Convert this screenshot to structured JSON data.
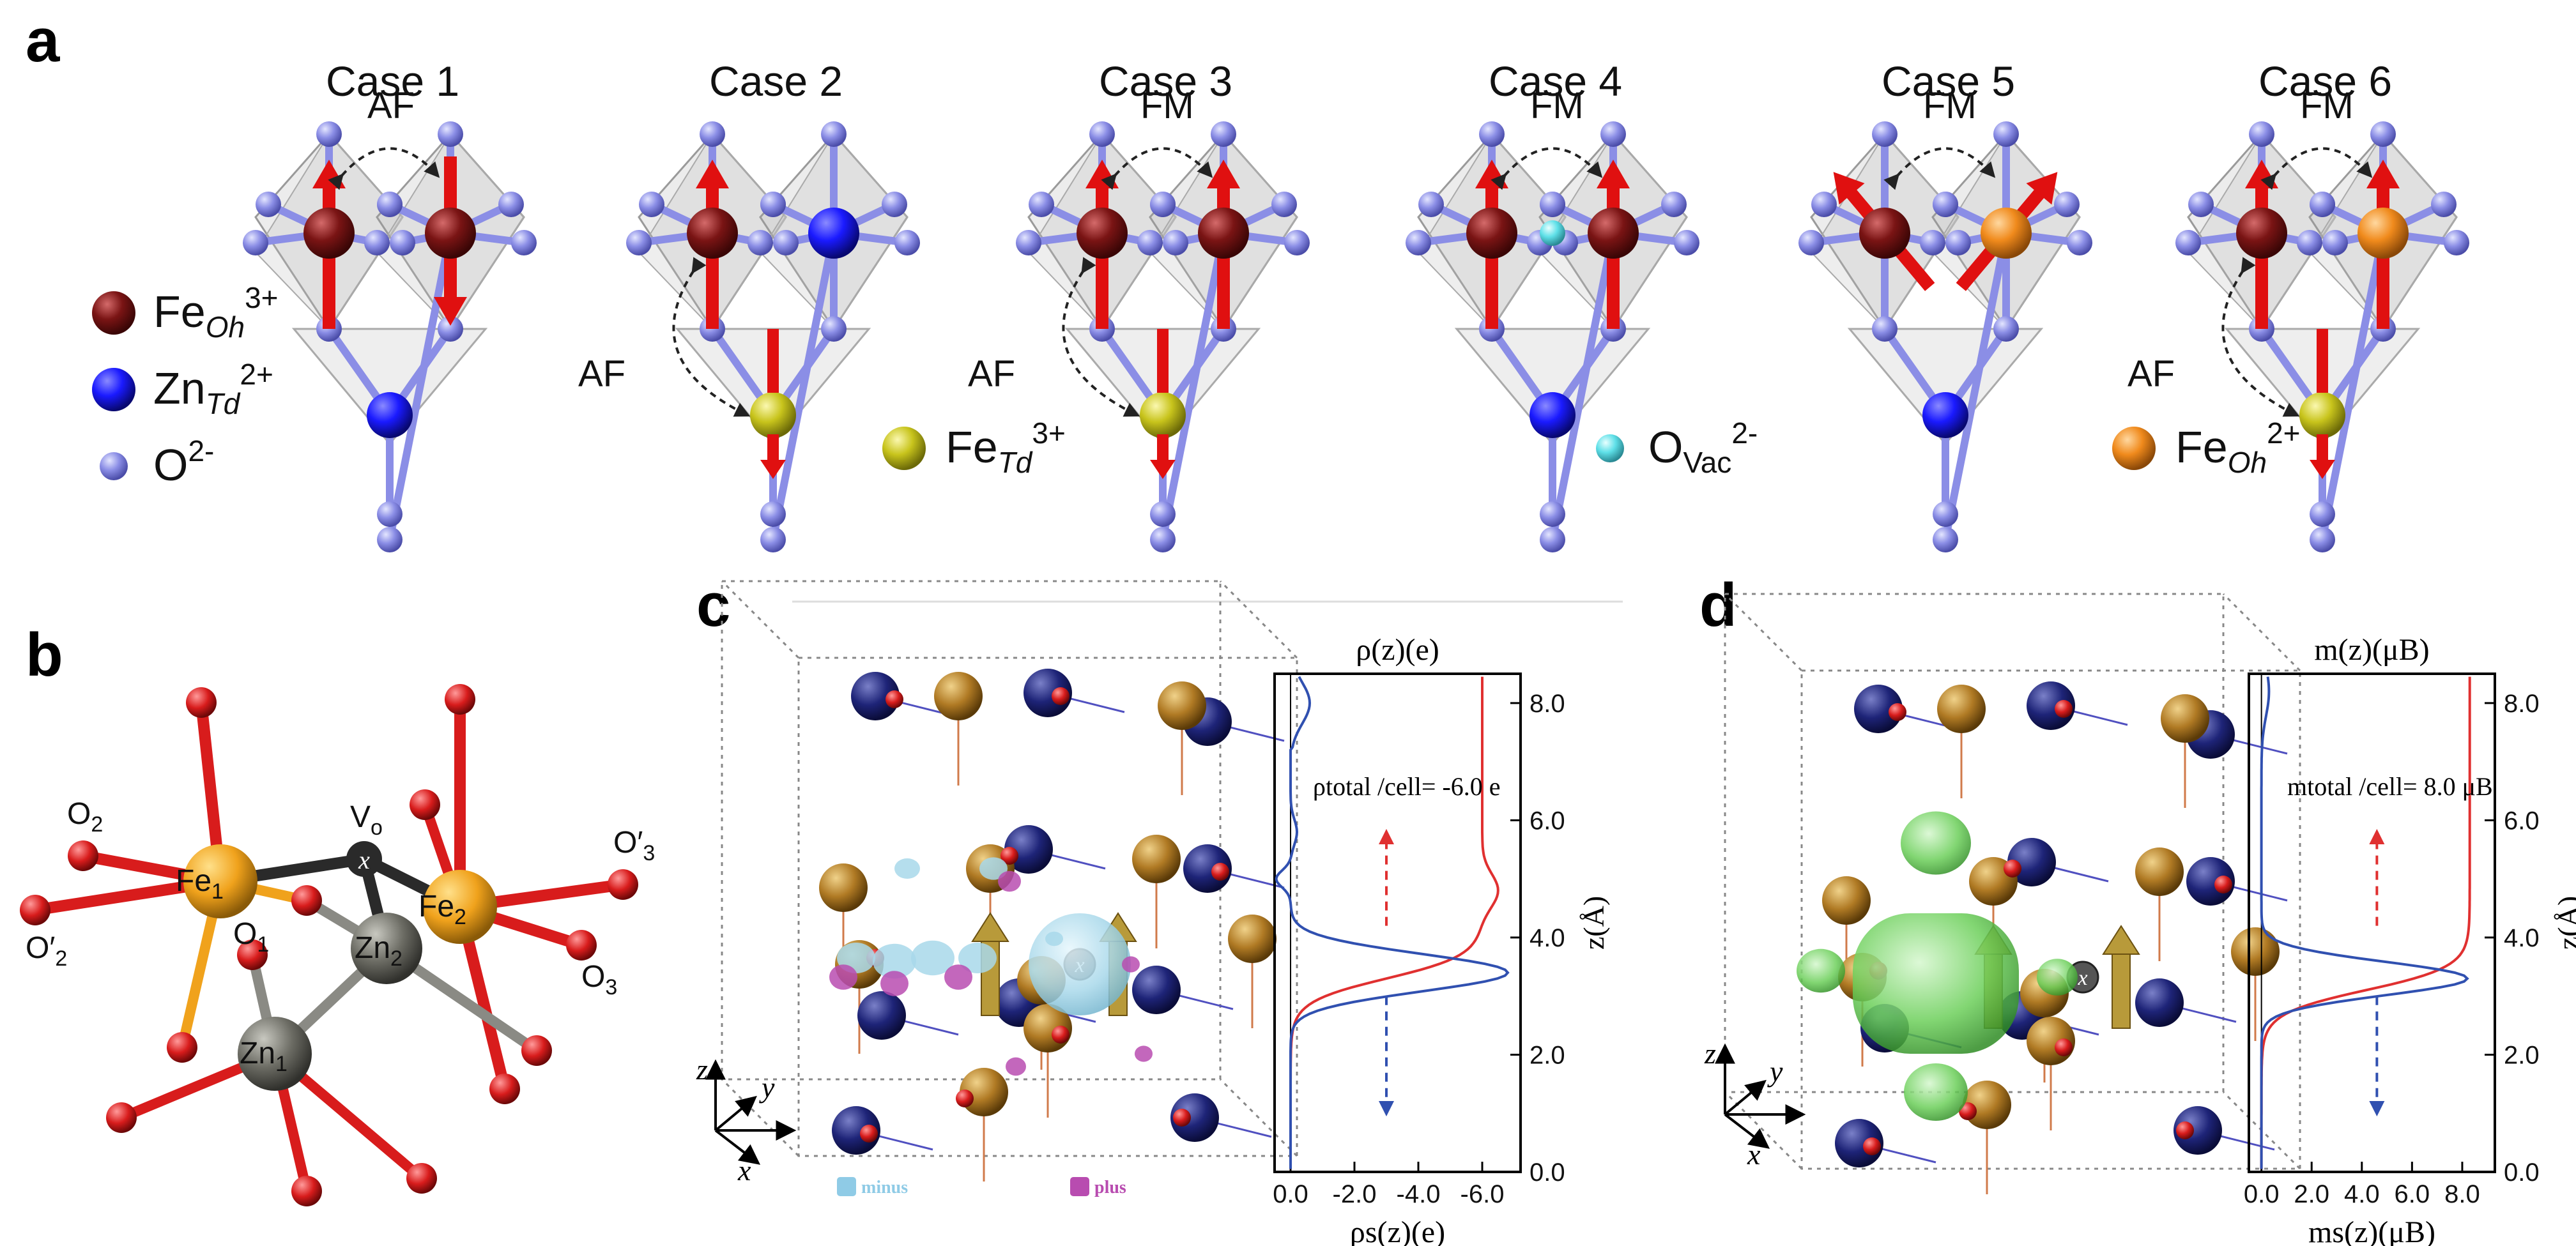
{
  "panels": {
    "a": "a",
    "b": "b",
    "c": "c",
    "d": "d"
  },
  "panel_a": {
    "cases": [
      {
        "title": "Case 1",
        "coupling_top": "AF",
        "coupling_side": ""
      },
      {
        "title": "Case 2",
        "coupling_top": "",
        "coupling_side": "AF"
      },
      {
        "title": "Case 3",
        "coupling_top": "FM",
        "coupling_side": "AF"
      },
      {
        "title": "Case 4",
        "coupling_top": "FM",
        "coupling_side": ""
      },
      {
        "title": "Case 5",
        "coupling_top": "FM",
        "coupling_side": ""
      },
      {
        "title": "Case 6",
        "coupling_top": "FM",
        "coupling_side": "AF"
      }
    ],
    "legend": {
      "fe_oh3": {
        "base": "Fe",
        "sub": "Oh",
        "sup": "3+"
      },
      "zn_td2": {
        "base": "Zn",
        "sub": "Td",
        "sup": "2+"
      },
      "o2": {
        "base": "O",
        "sup": "2-"
      },
      "fe_td3": {
        "base": "Fe",
        "sub": "Td",
        "sup": "3+"
      },
      "o_vac": {
        "base": "O",
        "sub": "Vac",
        "sup": "2-"
      },
      "fe_oh2": {
        "base": "Fe",
        "sub": "Oh",
        "sup": "2+"
      }
    },
    "colors": {
      "fe_oh3": "#7a1414",
      "zn_td2": "#1a1aff",
      "o": "#8b8ee6",
      "fe_td3": "#c8c41c",
      "o_vac": "#5fe0e8",
      "fe_oh2": "#f08a1c",
      "spin": "#e01010"
    }
  },
  "panel_b": {
    "labels": {
      "fe1": {
        "base": "Fe",
        "sub": "1"
      },
      "fe2": {
        "base": "Fe",
        "sub": "2"
      },
      "zn1": {
        "base": "Zn",
        "sub": "1"
      },
      "zn2": {
        "base": "Zn",
        "sub": "2"
      },
      "o1": {
        "base": "O",
        "sub": "1"
      },
      "o2": {
        "base": "O",
        "sub": "2"
      },
      "o3": {
        "base": "O",
        "sub": "3"
      },
      "o2p": {
        "base": "O′",
        "sub": "2"
      },
      "o3p": {
        "base": "O′",
        "sub": "3"
      },
      "vo": {
        "base": "V",
        "sub": "o"
      },
      "x": "x"
    },
    "colors": {
      "fe": "#f0a21c",
      "zn": "#6c6c64",
      "o": "#d81c1c",
      "vac": "#2a2a2a"
    }
  },
  "panel_c": {
    "axes_label": {
      "x": "x",
      "y": "y",
      "z": "z"
    },
    "legend_minus": "minus",
    "legend_plus": "plus",
    "plot": {
      "top_label": "ρ(z)(e)",
      "bottom_label": "ρs(z)(e)",
      "ylabel": "z(Å)",
      "annotation": "ρtotal /cell= -6.0 e",
      "yticks": [
        "0.0",
        "2.0",
        "4.0",
        "6.0",
        "8.0"
      ],
      "xticks": [
        "0.0",
        "-2.0",
        "-4.0",
        "-6.0"
      ]
    }
  },
  "panel_d": {
    "axes_label": {
      "x": "x",
      "y": "y",
      "z": "z"
    },
    "plot": {
      "top_label": "m(z)(μB)",
      "bottom_label": "ms(z)(μB)",
      "ylabel": "z(Å)",
      "annotation": "mtotal /cell= 8.0 μB",
      "yticks": [
        "0.0",
        "2.0",
        "4.0",
        "6.0",
        "8.0"
      ],
      "xticks": [
        "0.0",
        "2.0",
        "4.0",
        "6.0",
        "8.0"
      ]
    }
  }
}
